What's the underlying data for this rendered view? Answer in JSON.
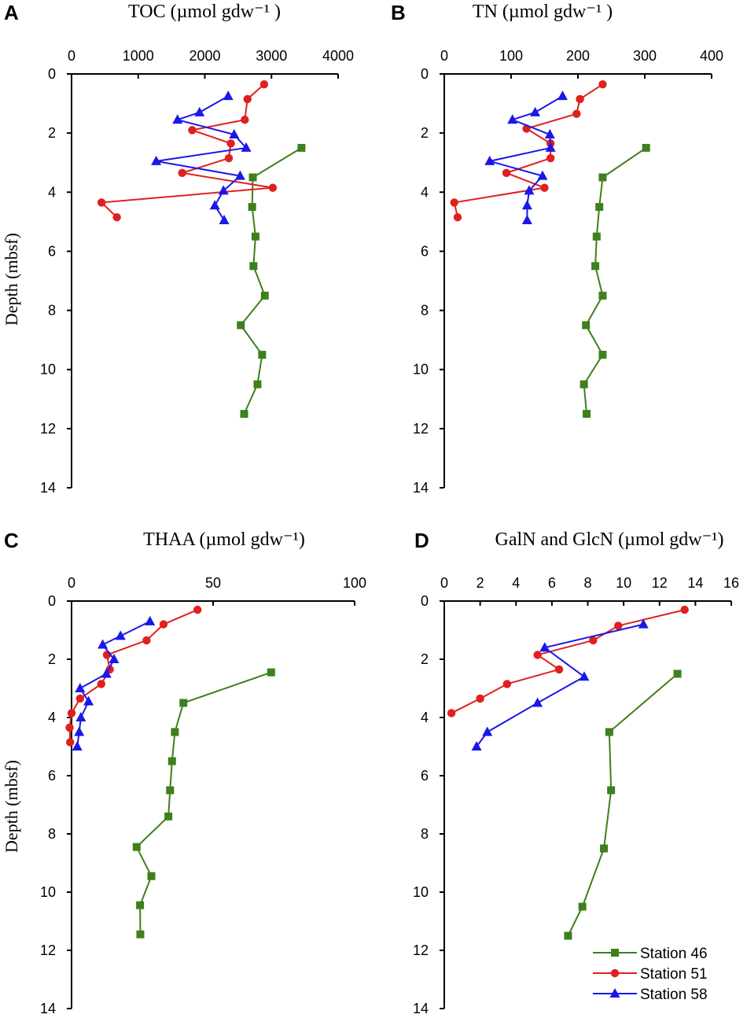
{
  "chart_data": [
    {
      "panel": "A",
      "type": "line",
      "title": "TOC (µmol gdw⁻¹ )",
      "xlabel": "TOC (µmol gdw⁻¹ )",
      "ylabel": "Depth (mbsf)",
      "xlim": [
        0,
        4000
      ],
      "ylim": [
        0,
        14
      ],
      "xticks": [
        "0",
        "1000",
        "2000",
        "3000",
        "4000"
      ],
      "yticks": [
        "0",
        "2",
        "4",
        "6",
        "8",
        "10",
        "12",
        "14"
      ],
      "series": [
        {
          "name": "Station 46",
          "color": "#3f7f1c",
          "marker": "square",
          "points": [
            [
              3450,
              2.5
            ],
            [
              2720,
              3.5
            ],
            [
              2710,
              4.5
            ],
            [
              2760,
              5.5
            ],
            [
              2730,
              6.5
            ],
            [
              2900,
              7.5
            ],
            [
              2540,
              8.5
            ],
            [
              2860,
              9.5
            ],
            [
              2790,
              10.5
            ],
            [
              2590,
              11.5
            ]
          ]
        },
        {
          "name": "Station 51",
          "color": "#e0201e",
          "marker": "circle",
          "points": [
            [
              2890,
              0.35
            ],
            [
              2640,
              0.85
            ],
            [
              2600,
              1.55
            ],
            [
              1810,
              1.9
            ],
            [
              2390,
              2.35
            ],
            [
              2360,
              2.85
            ],
            [
              1660,
              3.35
            ],
            [
              3020,
              3.85
            ],
            [
              450,
              4.35
            ],
            [
              680,
              4.85
            ]
          ]
        },
        {
          "name": "Station 58",
          "color": "#1a17e8",
          "marker": "triangle",
          "points": [
            [
              2350,
              0.75
            ],
            [
              1920,
              1.3
            ],
            [
              1590,
              1.55
            ],
            [
              2440,
              2.05
            ],
            [
              2620,
              2.5
            ],
            [
              1270,
              2.95
            ],
            [
              2530,
              3.45
            ],
            [
              2280,
              3.95
            ],
            [
              2150,
              4.45
            ],
            [
              2290,
              4.95
            ]
          ]
        }
      ]
    },
    {
      "panel": "B",
      "type": "line",
      "title": "TN (µmol gdw⁻¹ )",
      "xlabel": "TN (µmol gdw⁻¹ )",
      "ylabel": "",
      "xlim": [
        0,
        400
      ],
      "ylim": [
        0,
        14
      ],
      "xticks": [
        "0",
        "100",
        "200",
        "300",
        "400"
      ],
      "yticks": [
        "0",
        "2",
        "4",
        "6",
        "8",
        "10",
        "12",
        "14"
      ],
      "series": [
        {
          "name": "Station 46",
          "color": "#3f7f1c",
          "marker": "square",
          "points": [
            [
              302,
              2.5
            ],
            [
              237,
              3.5
            ],
            [
              232,
              4.5
            ],
            [
              228,
              5.5
            ],
            [
              226,
              6.5
            ],
            [
              237,
              7.5
            ],
            [
              212,
              8.5
            ],
            [
              237,
              9.5
            ],
            [
              209,
              10.5
            ],
            [
              213,
              11.5
            ]
          ]
        },
        {
          "name": "Station 51",
          "color": "#e0201e",
          "marker": "circle",
          "points": [
            [
              237,
              0.35
            ],
            [
              203,
              0.85
            ],
            [
              198,
              1.35
            ],
            [
              123,
              1.85
            ],
            [
              159,
              2.35
            ],
            [
              159,
              2.85
            ],
            [
              93,
              3.35
            ],
            [
              150,
              3.85
            ],
            [
              15,
              4.35
            ],
            [
              20,
              4.85
            ]
          ]
        },
        {
          "name": "Station 58",
          "color": "#1a17e8",
          "marker": "triangle",
          "points": [
            [
              177,
              0.75
            ],
            [
              136,
              1.3
            ],
            [
              102,
              1.55
            ],
            [
              158,
              2.05
            ],
            [
              159,
              2.5
            ],
            [
              68,
              2.95
            ],
            [
              147,
              3.45
            ],
            [
              127,
              3.95
            ],
            [
              124,
              4.45
            ],
            [
              124,
              4.95
            ]
          ]
        }
      ]
    },
    {
      "panel": "C",
      "type": "line",
      "title": "THAA (µmol gdw⁻¹)",
      "xlabel": "THAA (µmol gdw⁻¹)",
      "ylabel": "Depth (mbsf)",
      "xlim": [
        0,
        100
      ],
      "ylim": [
        0,
        14
      ],
      "xticks": [
        "0",
        "50",
        "100"
      ],
      "yticks": [
        "0",
        "2",
        "4",
        "6",
        "8",
        "10",
        "12",
        "14"
      ],
      "series": [
        {
          "name": "Station 46",
          "color": "#3f7f1c",
          "marker": "square",
          "points": [
            [
              70.5,
              2.45
            ],
            [
              39.5,
              3.5
            ],
            [
              36.5,
              4.5
            ],
            [
              35.5,
              5.5
            ],
            [
              34.8,
              6.5
            ],
            [
              34.2,
              7.4
            ],
            [
              23,
              8.45
            ],
            [
              28.2,
              9.45
            ],
            [
              24.2,
              10.45
            ],
            [
              24.3,
              11.45
            ]
          ]
        },
        {
          "name": "Station 51",
          "color": "#e0201e",
          "marker": "circle",
          "points": [
            [
              44.5,
              0.3
            ],
            [
              32.5,
              0.8
            ],
            [
              26.5,
              1.35
            ],
            [
              12.5,
              1.85
            ],
            [
              13.5,
              2.35
            ],
            [
              10.5,
              2.85
            ],
            [
              3,
              3.35
            ],
            [
              0,
              3.85
            ],
            [
              -0.7,
              4.35
            ],
            [
              -0.5,
              4.85
            ]
          ]
        },
        {
          "name": "Station 58",
          "color": "#1a17e8",
          "marker": "triangle",
          "points": [
            [
              27.7,
              0.7
            ],
            [
              17.3,
              1.2
            ],
            [
              11,
              1.5
            ],
            [
              15,
              2.0
            ],
            [
              12.3,
              2.5
            ],
            [
              3,
              3.0
            ],
            [
              6,
              3.45
            ],
            [
              3.3,
              4.0
            ],
            [
              2.7,
              4.5
            ],
            [
              2,
              5.0
            ]
          ]
        }
      ]
    },
    {
      "panel": "D",
      "type": "line",
      "title": "GalN and GlcN (µmol gdw⁻¹)",
      "xlabel": "GalN and GlcN (µmol gdw⁻¹)",
      "ylabel": "",
      "xlim": [
        0,
        16
      ],
      "ylim": [
        0,
        14
      ],
      "xticks": [
        "0",
        "2",
        "4",
        "6",
        "8",
        "10",
        "12",
        "14",
        "16"
      ],
      "yticks": [
        "0",
        "2",
        "4",
        "6",
        "8",
        "10",
        "12",
        "14"
      ],
      "series": [
        {
          "name": "Station 46",
          "color": "#3f7f1c",
          "marker": "square",
          "points": [
            [
              13.0,
              2.5
            ],
            [
              9.2,
              4.5
            ],
            [
              9.3,
              6.5
            ],
            [
              8.9,
              8.5
            ],
            [
              7.7,
              10.5
            ],
            [
              6.9,
              11.5
            ]
          ]
        },
        {
          "name": "Station 51",
          "color": "#e0201e",
          "marker": "circle",
          "points": [
            [
              13.4,
              0.3
            ],
            [
              9.7,
              0.85
            ],
            [
              8.3,
              1.35
            ],
            [
              5.2,
              1.85
            ],
            [
              6.4,
              2.35
            ],
            [
              3.5,
              2.85
            ],
            [
              2.0,
              3.35
            ],
            [
              0.4,
              3.85
            ]
          ]
        },
        {
          "name": "Station 58",
          "color": "#1a17e8",
          "marker": "triangle",
          "points": [
            [
              11.1,
              0.8
            ],
            [
              5.6,
              1.6
            ],
            [
              7.8,
              2.6
            ],
            [
              5.2,
              3.5
            ],
            [
              2.4,
              4.5
            ],
            [
              1.8,
              5.0
            ]
          ]
        }
      ]
    }
  ],
  "legend": [
    {
      "label": "Station 46",
      "color": "#3f7f1c",
      "marker": "square"
    },
    {
      "label": "Station 51",
      "color": "#e0201e",
      "marker": "circle"
    },
    {
      "label": "Station 58",
      "color": "#1a17e8",
      "marker": "triangle"
    }
  ]
}
